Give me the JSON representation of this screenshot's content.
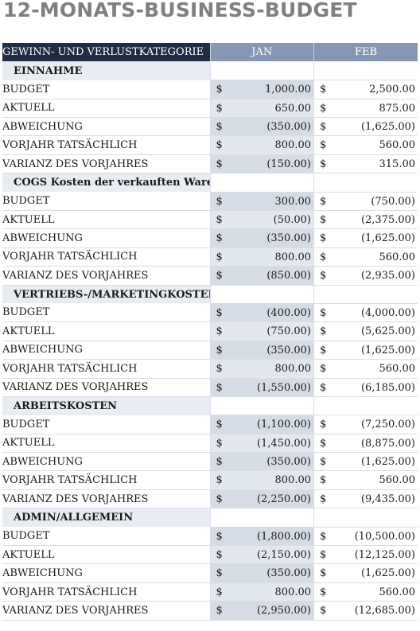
{
  "title": "12-MONATS-BUSINESS-BUDGET",
  "header": {
    "category_label": "GEWINN- UND VERLUSTKATEGORIE",
    "months": [
      "JAN",
      "FEB"
    ]
  },
  "currency_symbol": "$",
  "sections": [
    {
      "name": "EINNAHME",
      "rows": [
        {
          "label": "BUDGET",
          "jan": "1,000.00",
          "feb": "2,500.00"
        },
        {
          "label": "AKTUELL",
          "jan": "650.00",
          "feb": "875.00"
        },
        {
          "label": "ABWEICHUNG",
          "jan": "(350.00)",
          "feb": "(1,625.00)"
        },
        {
          "label": "VORJAHR TATSÄCHLICH",
          "jan": "800.00",
          "feb": "560.00"
        },
        {
          "label": "VARIANZ DES VORJAHRES",
          "jan": "(150.00)",
          "feb": "315.00"
        }
      ]
    },
    {
      "name": "COGS  Kosten der verkauften Waren",
      "rows": [
        {
          "label": "BUDGET",
          "jan": "300.00",
          "feb": "(750.00)"
        },
        {
          "label": "AKTUELL",
          "jan": "(50.00)",
          "feb": "(2,375.00)"
        },
        {
          "label": "ABWEICHUNG",
          "jan": "(350.00)",
          "feb": "(1,625.00)"
        },
        {
          "label": "VORJAHR TATSÄCHLICH",
          "jan": "800.00",
          "feb": "560.00"
        },
        {
          "label": "VARIANZ DES VORJAHRES",
          "jan": "(850.00)",
          "feb": "(2,935.00)"
        }
      ]
    },
    {
      "name": "VERTRIEBS-/MARKETINGKOSTEN",
      "rows": [
        {
          "label": "BUDGET",
          "jan": "(400.00)",
          "feb": "(4,000.00)"
        },
        {
          "label": "AKTUELL",
          "jan": "(750.00)",
          "feb": "(5,625.00)"
        },
        {
          "label": "ABWEICHUNG",
          "jan": "(350.00)",
          "feb": "(1,625.00)"
        },
        {
          "label": "VORJAHR TATSÄCHLICH",
          "jan": "800.00",
          "feb": "560.00"
        },
        {
          "label": "VARIANZ DES VORJAHRES",
          "jan": "(1,550.00)",
          "feb": "(6,185.00)"
        }
      ]
    },
    {
      "name": "ARBEITSKOSTEN",
      "rows": [
        {
          "label": "BUDGET",
          "jan": "(1,100.00)",
          "feb": "(7,250.00)"
        },
        {
          "label": "AKTUELL",
          "jan": "(1,450.00)",
          "feb": "(8,875.00)"
        },
        {
          "label": "ABWEICHUNG",
          "jan": "(350.00)",
          "feb": "(1,625.00)"
        },
        {
          "label": "VORJAHR TATSÄCHLICH",
          "jan": "800.00",
          "feb": "560.00"
        },
        {
          "label": "VARIANZ DES VORJAHRES",
          "jan": "(2,250.00)",
          "feb": "(9,435.00)"
        }
      ]
    },
    {
      "name": "ADMIN/ALLGEMEIN",
      "rows": [
        {
          "label": "BUDGET",
          "jan": "(1,800.00)",
          "feb": "(10,500.00)"
        },
        {
          "label": "AKTUELL",
          "jan": "(2,150.00)",
          "feb": "(12,125.00)"
        },
        {
          "label": "ABWEICHUNG",
          "jan": "(350.00)",
          "feb": "(1,625.00)"
        },
        {
          "label": "VORJAHR TATSÄCHLICH",
          "jan": "800.00",
          "feb": "560.00"
        },
        {
          "label": "VARIANZ DES VORJAHRES",
          "jan": "(2,950.00)",
          "feb": "(12,685.00)"
        }
      ]
    }
  ]
}
